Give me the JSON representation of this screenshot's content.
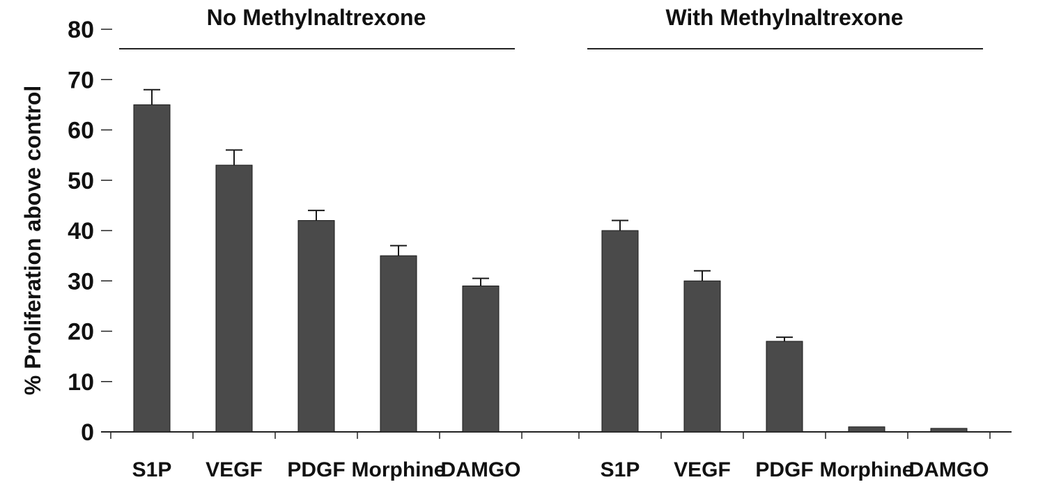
{
  "chart_data": {
    "type": "bar",
    "ylabel": "% Proliferation above control",
    "ylim": [
      0,
      80
    ],
    "yticks": [
      0,
      10,
      20,
      30,
      40,
      50,
      60,
      70,
      80
    ],
    "bar_color": "#4a4a4a",
    "groups": [
      {
        "title": "No Methylnaltrexone",
        "categories": [
          "S1P",
          "VEGF",
          "PDGF",
          "Morphine",
          "DAMGO"
        ],
        "values": [
          65,
          53,
          42,
          35,
          29
        ],
        "errors": [
          3,
          3,
          2,
          2,
          1.5
        ]
      },
      {
        "title": "With Methylnaltrexone",
        "categories": [
          "S1P",
          "VEGF",
          "PDGF",
          "Morphine",
          "DAMGO"
        ],
        "values": [
          40,
          30,
          18,
          1,
          0.7
        ],
        "errors": [
          2,
          2,
          0.8,
          0,
          0
        ]
      }
    ]
  }
}
